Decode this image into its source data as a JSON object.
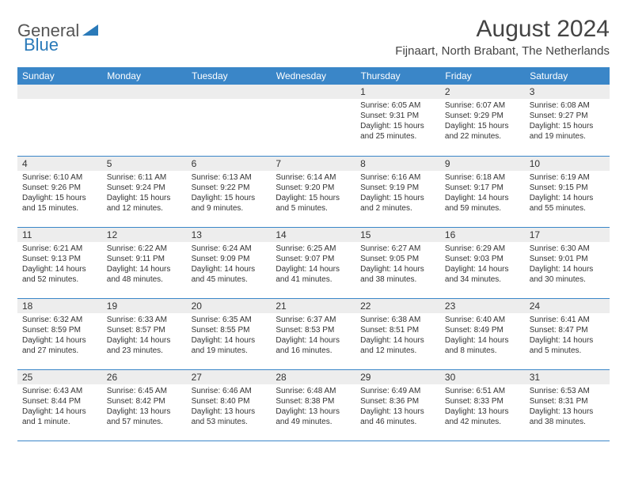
{
  "logo": {
    "general": "General",
    "blue": "Blue"
  },
  "title": "August 2024",
  "location": "Fijnaart, North Brabant, The Netherlands",
  "header_bg": "#3a86c8",
  "daynum_bg": "#ededed",
  "border_color": "#3a86c8",
  "day_headers": [
    "Sunday",
    "Monday",
    "Tuesday",
    "Wednesday",
    "Thursday",
    "Friday",
    "Saturday"
  ],
  "weeks": [
    [
      null,
      null,
      null,
      null,
      {
        "n": "1",
        "sr": "6:05 AM",
        "ss": "9:31 PM",
        "dl": "15 hours and 25 minutes."
      },
      {
        "n": "2",
        "sr": "6:07 AM",
        "ss": "9:29 PM",
        "dl": "15 hours and 22 minutes."
      },
      {
        "n": "3",
        "sr": "6:08 AM",
        "ss": "9:27 PM",
        "dl": "15 hours and 19 minutes."
      }
    ],
    [
      {
        "n": "4",
        "sr": "6:10 AM",
        "ss": "9:26 PM",
        "dl": "15 hours and 15 minutes."
      },
      {
        "n": "5",
        "sr": "6:11 AM",
        "ss": "9:24 PM",
        "dl": "15 hours and 12 minutes."
      },
      {
        "n": "6",
        "sr": "6:13 AM",
        "ss": "9:22 PM",
        "dl": "15 hours and 9 minutes."
      },
      {
        "n": "7",
        "sr": "6:14 AM",
        "ss": "9:20 PM",
        "dl": "15 hours and 5 minutes."
      },
      {
        "n": "8",
        "sr": "6:16 AM",
        "ss": "9:19 PM",
        "dl": "15 hours and 2 minutes."
      },
      {
        "n": "9",
        "sr": "6:18 AM",
        "ss": "9:17 PM",
        "dl": "14 hours and 59 minutes."
      },
      {
        "n": "10",
        "sr": "6:19 AM",
        "ss": "9:15 PM",
        "dl": "14 hours and 55 minutes."
      }
    ],
    [
      {
        "n": "11",
        "sr": "6:21 AM",
        "ss": "9:13 PM",
        "dl": "14 hours and 52 minutes."
      },
      {
        "n": "12",
        "sr": "6:22 AM",
        "ss": "9:11 PM",
        "dl": "14 hours and 48 minutes."
      },
      {
        "n": "13",
        "sr": "6:24 AM",
        "ss": "9:09 PM",
        "dl": "14 hours and 45 minutes."
      },
      {
        "n": "14",
        "sr": "6:25 AM",
        "ss": "9:07 PM",
        "dl": "14 hours and 41 minutes."
      },
      {
        "n": "15",
        "sr": "6:27 AM",
        "ss": "9:05 PM",
        "dl": "14 hours and 38 minutes."
      },
      {
        "n": "16",
        "sr": "6:29 AM",
        "ss": "9:03 PM",
        "dl": "14 hours and 34 minutes."
      },
      {
        "n": "17",
        "sr": "6:30 AM",
        "ss": "9:01 PM",
        "dl": "14 hours and 30 minutes."
      }
    ],
    [
      {
        "n": "18",
        "sr": "6:32 AM",
        "ss": "8:59 PM",
        "dl": "14 hours and 27 minutes."
      },
      {
        "n": "19",
        "sr": "6:33 AM",
        "ss": "8:57 PM",
        "dl": "14 hours and 23 minutes."
      },
      {
        "n": "20",
        "sr": "6:35 AM",
        "ss": "8:55 PM",
        "dl": "14 hours and 19 minutes."
      },
      {
        "n": "21",
        "sr": "6:37 AM",
        "ss": "8:53 PM",
        "dl": "14 hours and 16 minutes."
      },
      {
        "n": "22",
        "sr": "6:38 AM",
        "ss": "8:51 PM",
        "dl": "14 hours and 12 minutes."
      },
      {
        "n": "23",
        "sr": "6:40 AM",
        "ss": "8:49 PM",
        "dl": "14 hours and 8 minutes."
      },
      {
        "n": "24",
        "sr": "6:41 AM",
        "ss": "8:47 PM",
        "dl": "14 hours and 5 minutes."
      }
    ],
    [
      {
        "n": "25",
        "sr": "6:43 AM",
        "ss": "8:44 PM",
        "dl": "14 hours and 1 minute."
      },
      {
        "n": "26",
        "sr": "6:45 AM",
        "ss": "8:42 PM",
        "dl": "13 hours and 57 minutes."
      },
      {
        "n": "27",
        "sr": "6:46 AM",
        "ss": "8:40 PM",
        "dl": "13 hours and 53 minutes."
      },
      {
        "n": "28",
        "sr": "6:48 AM",
        "ss": "8:38 PM",
        "dl": "13 hours and 49 minutes."
      },
      {
        "n": "29",
        "sr": "6:49 AM",
        "ss": "8:36 PM",
        "dl": "13 hours and 46 minutes."
      },
      {
        "n": "30",
        "sr": "6:51 AM",
        "ss": "8:33 PM",
        "dl": "13 hours and 42 minutes."
      },
      {
        "n": "31",
        "sr": "6:53 AM",
        "ss": "8:31 PM",
        "dl": "13 hours and 38 minutes."
      }
    ]
  ],
  "labels": {
    "sunrise": "Sunrise: ",
    "sunset": "Sunset: ",
    "daylight": "Daylight: "
  }
}
